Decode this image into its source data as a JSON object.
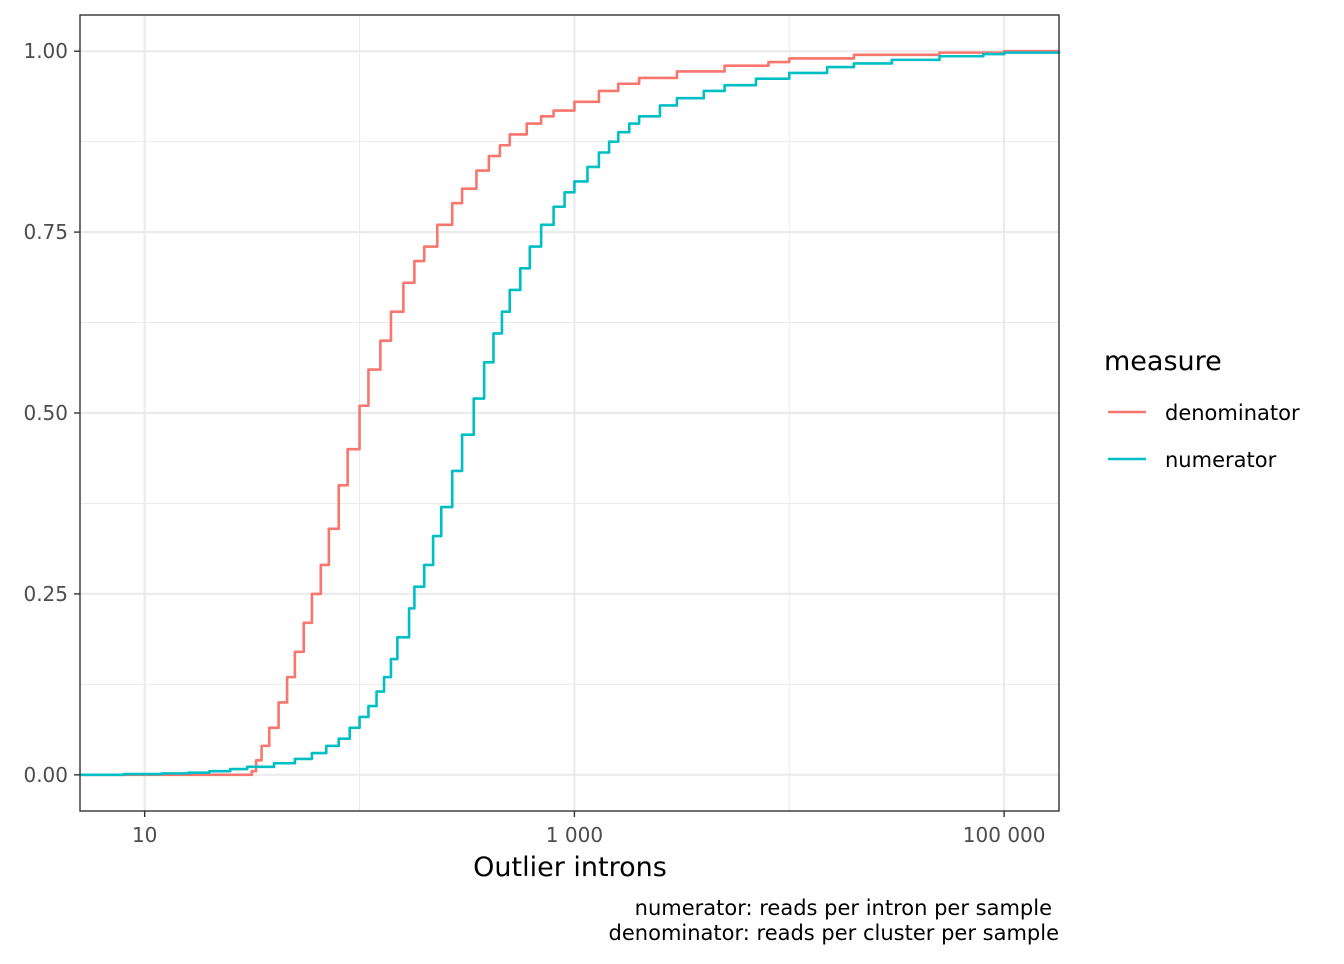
{
  "chart_data": {
    "type": "line",
    "step": true,
    "xlabel": "Outlier introns",
    "ylabel": "",
    "x_scale": "log10",
    "xlim": [
      5,
      180000
    ],
    "ylim": [
      -0.05,
      1.05
    ],
    "x_ticks": [
      10,
      1000,
      100000
    ],
    "x_tick_labels": [
      "10",
      "1 000",
      "100 000"
    ],
    "y_ticks": [
      0,
      0.25,
      0.5,
      0.75,
      1.0
    ],
    "y_tick_labels": [
      "0.00",
      "0.25",
      "0.50",
      "0.75",
      "1.00"
    ],
    "grid": true,
    "legend": {
      "title": "measure",
      "position": "right"
    },
    "caption": [
      "numerator: reads per intron per sample",
      "denominator: reads per cluster per sample"
    ],
    "series": [
      {
        "name": "denominator",
        "color": "#F8766D",
        "points": [
          [
            5,
            0
          ],
          [
            31,
            0
          ],
          [
            31.5,
            0.005
          ],
          [
            33,
            0.02
          ],
          [
            35,
            0.04
          ],
          [
            38,
            0.065
          ],
          [
            42,
            0.1
          ],
          [
            46,
            0.135
          ],
          [
            50,
            0.17
          ],
          [
            55,
            0.21
          ],
          [
            60,
            0.25
          ],
          [
            66,
            0.29
          ],
          [
            72,
            0.34
          ],
          [
            80,
            0.4
          ],
          [
            88,
            0.45
          ],
          [
            100,
            0.51
          ],
          [
            110,
            0.56
          ],
          [
            125,
            0.6
          ],
          [
            140,
            0.64
          ],
          [
            160,
            0.68
          ],
          [
            180,
            0.71
          ],
          [
            200,
            0.73
          ],
          [
            230,
            0.76
          ],
          [
            270,
            0.79
          ],
          [
            300,
            0.81
          ],
          [
            350,
            0.835
          ],
          [
            400,
            0.855
          ],
          [
            450,
            0.87
          ],
          [
            500,
            0.885
          ],
          [
            600,
            0.9
          ],
          [
            700,
            0.91
          ],
          [
            800,
            0.918
          ],
          [
            1000,
            0.93
          ],
          [
            1300,
            0.945
          ],
          [
            1600,
            0.955
          ],
          [
            2000,
            0.963
          ],
          [
            3000,
            0.972
          ],
          [
            5000,
            0.98
          ],
          [
            8000,
            0.985
          ],
          [
            10000,
            0.99
          ],
          [
            20000,
            0.995
          ],
          [
            50000,
            0.998
          ],
          [
            100000,
            1.0
          ],
          [
            180000,
            1.0
          ]
        ]
      },
      {
        "name": "numerator",
        "color": "#00BFC4",
        "points": [
          [
            5,
            0
          ],
          [
            8,
            0.001
          ],
          [
            12,
            0.002
          ],
          [
            16,
            0.003
          ],
          [
            20,
            0.005
          ],
          [
            25,
            0.008
          ],
          [
            30,
            0.011
          ],
          [
            40,
            0.016
          ],
          [
            50,
            0.022
          ],
          [
            60,
            0.03
          ],
          [
            70,
            0.04
          ],
          [
            80,
            0.05
          ],
          [
            90,
            0.065
          ],
          [
            100,
            0.08
          ],
          [
            110,
            0.095
          ],
          [
            120,
            0.115
          ],
          [
            130,
            0.135
          ],
          [
            140,
            0.16
          ],
          [
            150,
            0.19
          ],
          [
            170,
            0.23
          ],
          [
            180,
            0.26
          ],
          [
            200,
            0.29
          ],
          [
            220,
            0.33
          ],
          [
            240,
            0.37
          ],
          [
            270,
            0.42
          ],
          [
            300,
            0.47
          ],
          [
            340,
            0.52
          ],
          [
            380,
            0.57
          ],
          [
            420,
            0.61
          ],
          [
            460,
            0.64
          ],
          [
            500,
            0.67
          ],
          [
            560,
            0.7
          ],
          [
            620,
            0.73
          ],
          [
            700,
            0.76
          ],
          [
            800,
            0.785
          ],
          [
            900,
            0.805
          ],
          [
            1000,
            0.82
          ],
          [
            1150,
            0.84
          ],
          [
            1300,
            0.86
          ],
          [
            1450,
            0.875
          ],
          [
            1600,
            0.888
          ],
          [
            1800,
            0.9
          ],
          [
            2000,
            0.91
          ],
          [
            2500,
            0.925
          ],
          [
            3000,
            0.935
          ],
          [
            4000,
            0.945
          ],
          [
            5000,
            0.953
          ],
          [
            7000,
            0.962
          ],
          [
            10000,
            0.97
          ],
          [
            15000,
            0.978
          ],
          [
            20000,
            0.983
          ],
          [
            30000,
            0.988
          ],
          [
            50000,
            0.993
          ],
          [
            80000,
            0.996
          ],
          [
            100000,
            0.998
          ],
          [
            180000,
            1.0
          ]
        ]
      }
    ]
  }
}
